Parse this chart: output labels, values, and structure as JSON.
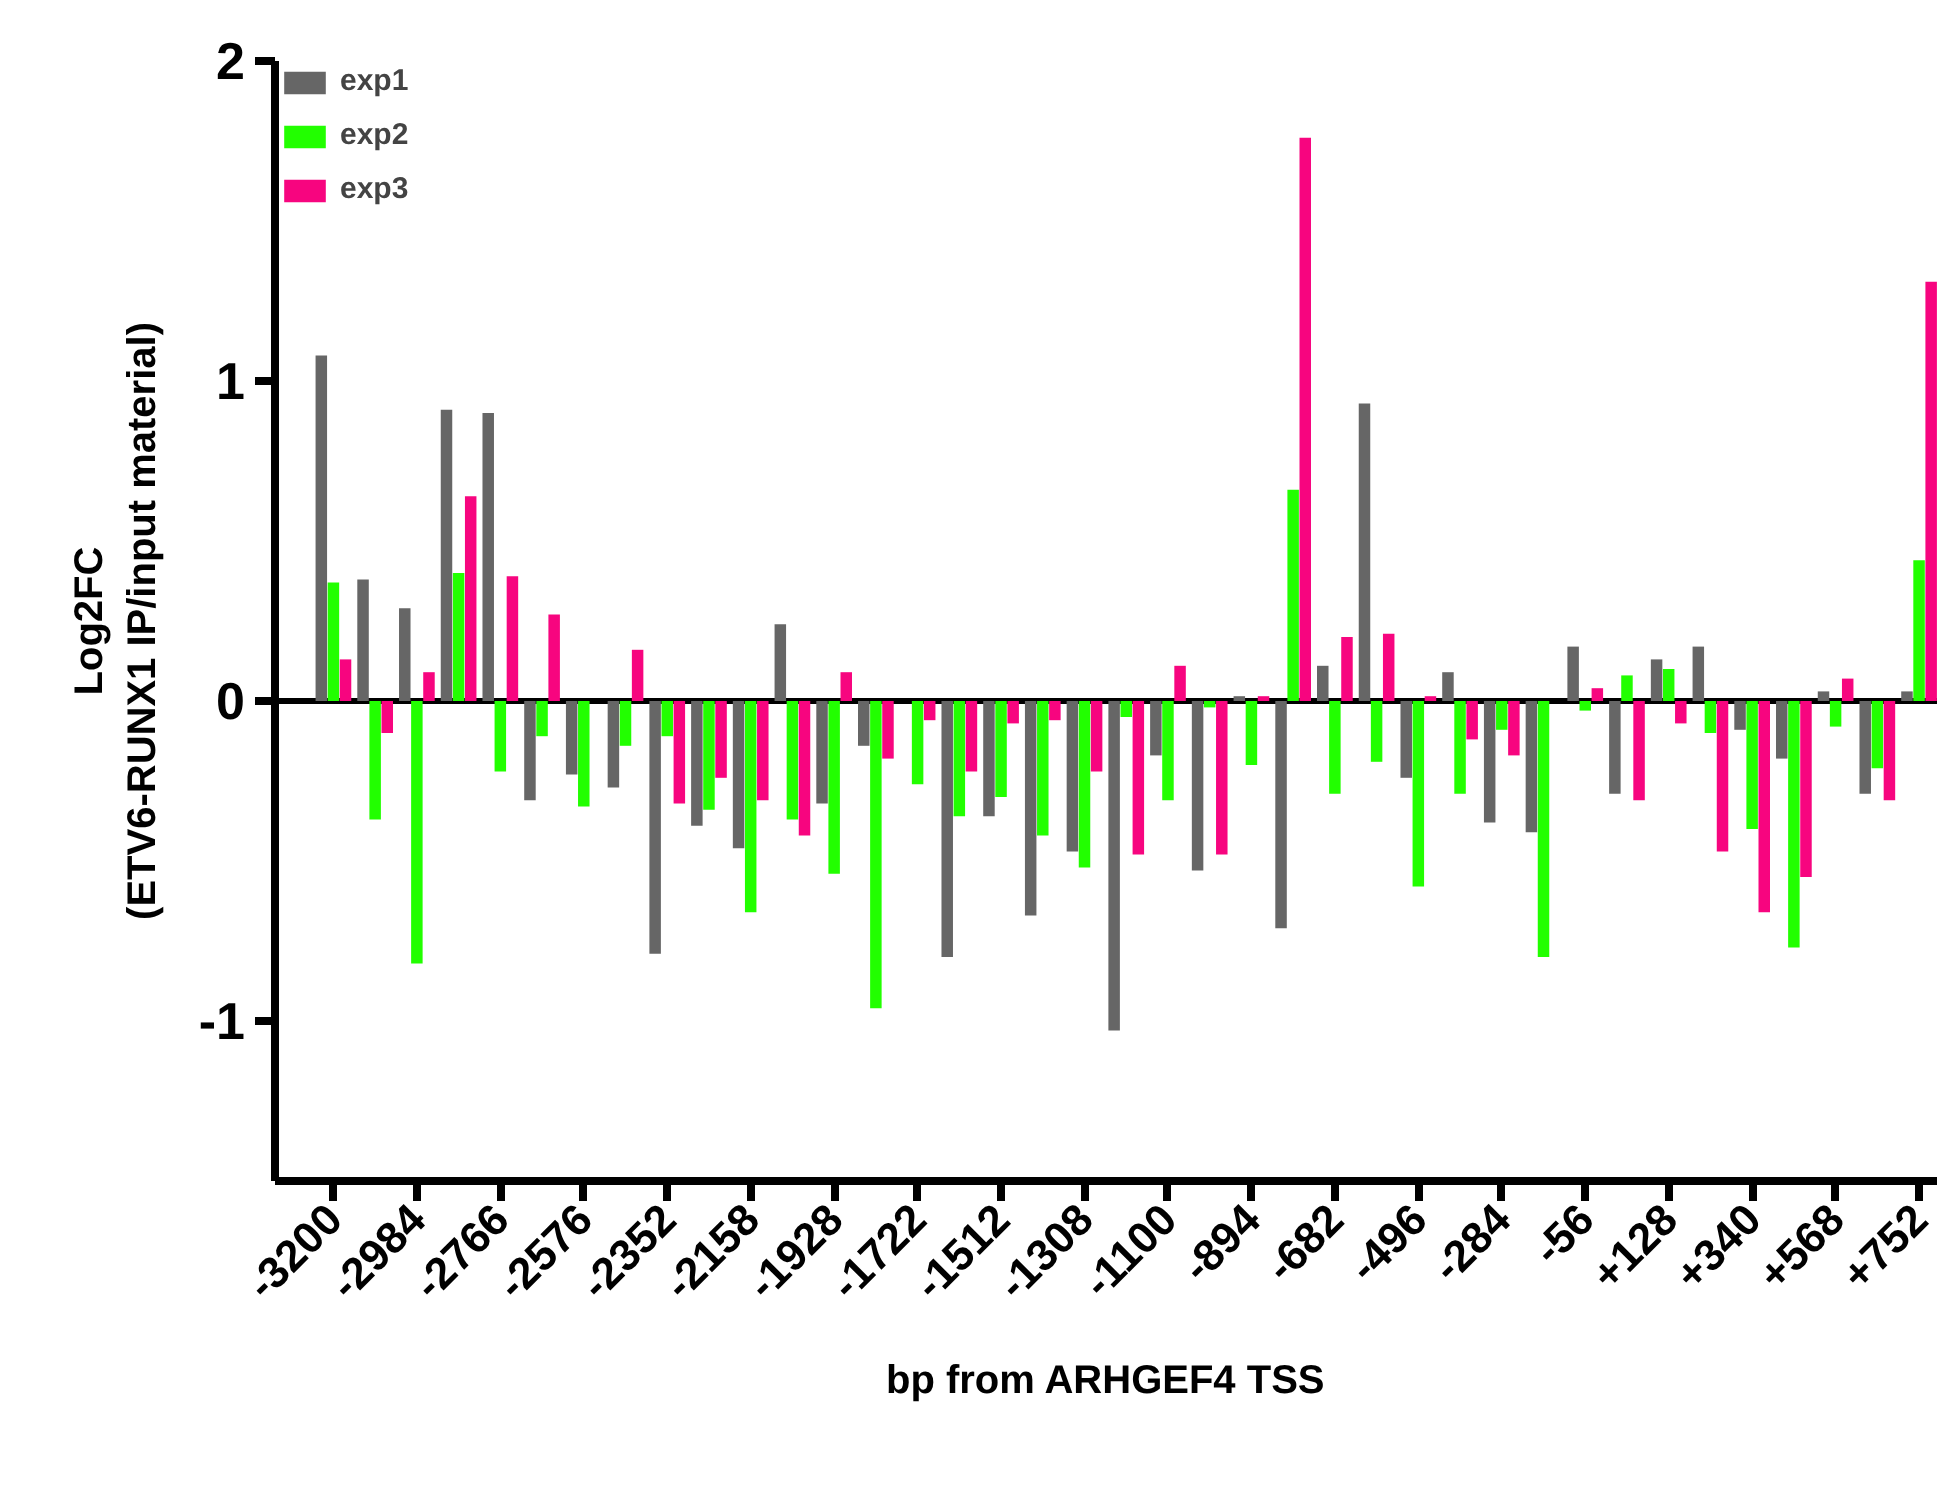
{
  "chart_data": {
    "type": "bar",
    "xlabel": "bp from ARHGEF4 TSS",
    "ylabel": "Log2FC\n(ETV6-RUNX1 IP/input material)",
    "categories": [
      "-3200",
      null,
      "-2984",
      null,
      "-2766",
      null,
      "-2576",
      null,
      "-2352",
      null,
      "-2158",
      null,
      "-1928",
      null,
      "-1722",
      null,
      "-1512",
      null,
      "-1308",
      null,
      "-1100",
      null,
      "-894",
      null,
      "-682",
      null,
      "-496",
      null,
      "-284",
      null,
      "-56",
      null,
      "+128",
      null,
      "+340",
      null,
      "+568",
      null,
      "+752"
    ],
    "series": [
      {
        "name": "exp1",
        "color": "#666666",
        "values": [
          1.08,
          0.38,
          0.29,
          0.91,
          0.9,
          -0.31,
          -0.23,
          -0.27,
          -0.79,
          -0.39,
          -0.46,
          0.24,
          -0.32,
          -0.14,
          0,
          -0.8,
          -0.36,
          -0.67,
          -0.47,
          -1.03,
          -0.17,
          -0.53,
          0.015,
          -0.71,
          0.11,
          0.93,
          -0.24,
          0.09,
          -0.38,
          -0.41,
          0.17,
          -0.29,
          0.13,
          0.17,
          -0.09,
          -0.18,
          0.03,
          -0.29,
          0.03
        ]
      },
      {
        "name": "exp2",
        "color": "#22ff00",
        "values": [
          0.37,
          -0.37,
          -0.82,
          0.4,
          -0.22,
          -0.11,
          -0.33,
          -0.14,
          -0.11,
          -0.34,
          -0.66,
          -0.37,
          -0.54,
          -0.96,
          -0.26,
          -0.36,
          -0.3,
          -0.42,
          -0.52,
          -0.05,
          -0.31,
          -0.02,
          -0.2,
          0.66,
          -0.29,
          -0.19,
          -0.58,
          -0.29,
          -0.09,
          -0.8,
          -0.03,
          0.08,
          0.1,
          -0.1,
          -0.4,
          -0.77,
          -0.08,
          -0.21,
          0.44
        ]
      },
      {
        "name": "exp3",
        "color": "#f7057f",
        "values": [
          0.13,
          -0.1,
          0.09,
          0.64,
          0.39,
          0.27,
          0,
          0.16,
          -0.32,
          -0.24,
          -0.31,
          -0.42,
          0.09,
          -0.18,
          -0.06,
          -0.22,
          -0.07,
          -0.06,
          -0.22,
          -0.48,
          0.11,
          -0.48,
          0.015,
          1.76,
          0.2,
          0.21,
          0.015,
          -0.12,
          -0.17,
          0,
          0.04,
          -0.31,
          -0.07,
          -0.47,
          -0.66,
          -0.55,
          0.07,
          -0.31,
          1.31
        ]
      }
    ],
    "ylim": [
      -1.5,
      2
    ],
    "yticks": [
      -1,
      0,
      1,
      2
    ],
    "ref_lines": [
      {
        "axis": "y",
        "value": 0,
        "color": "#000000"
      }
    ],
    "legend": "top left"
  }
}
